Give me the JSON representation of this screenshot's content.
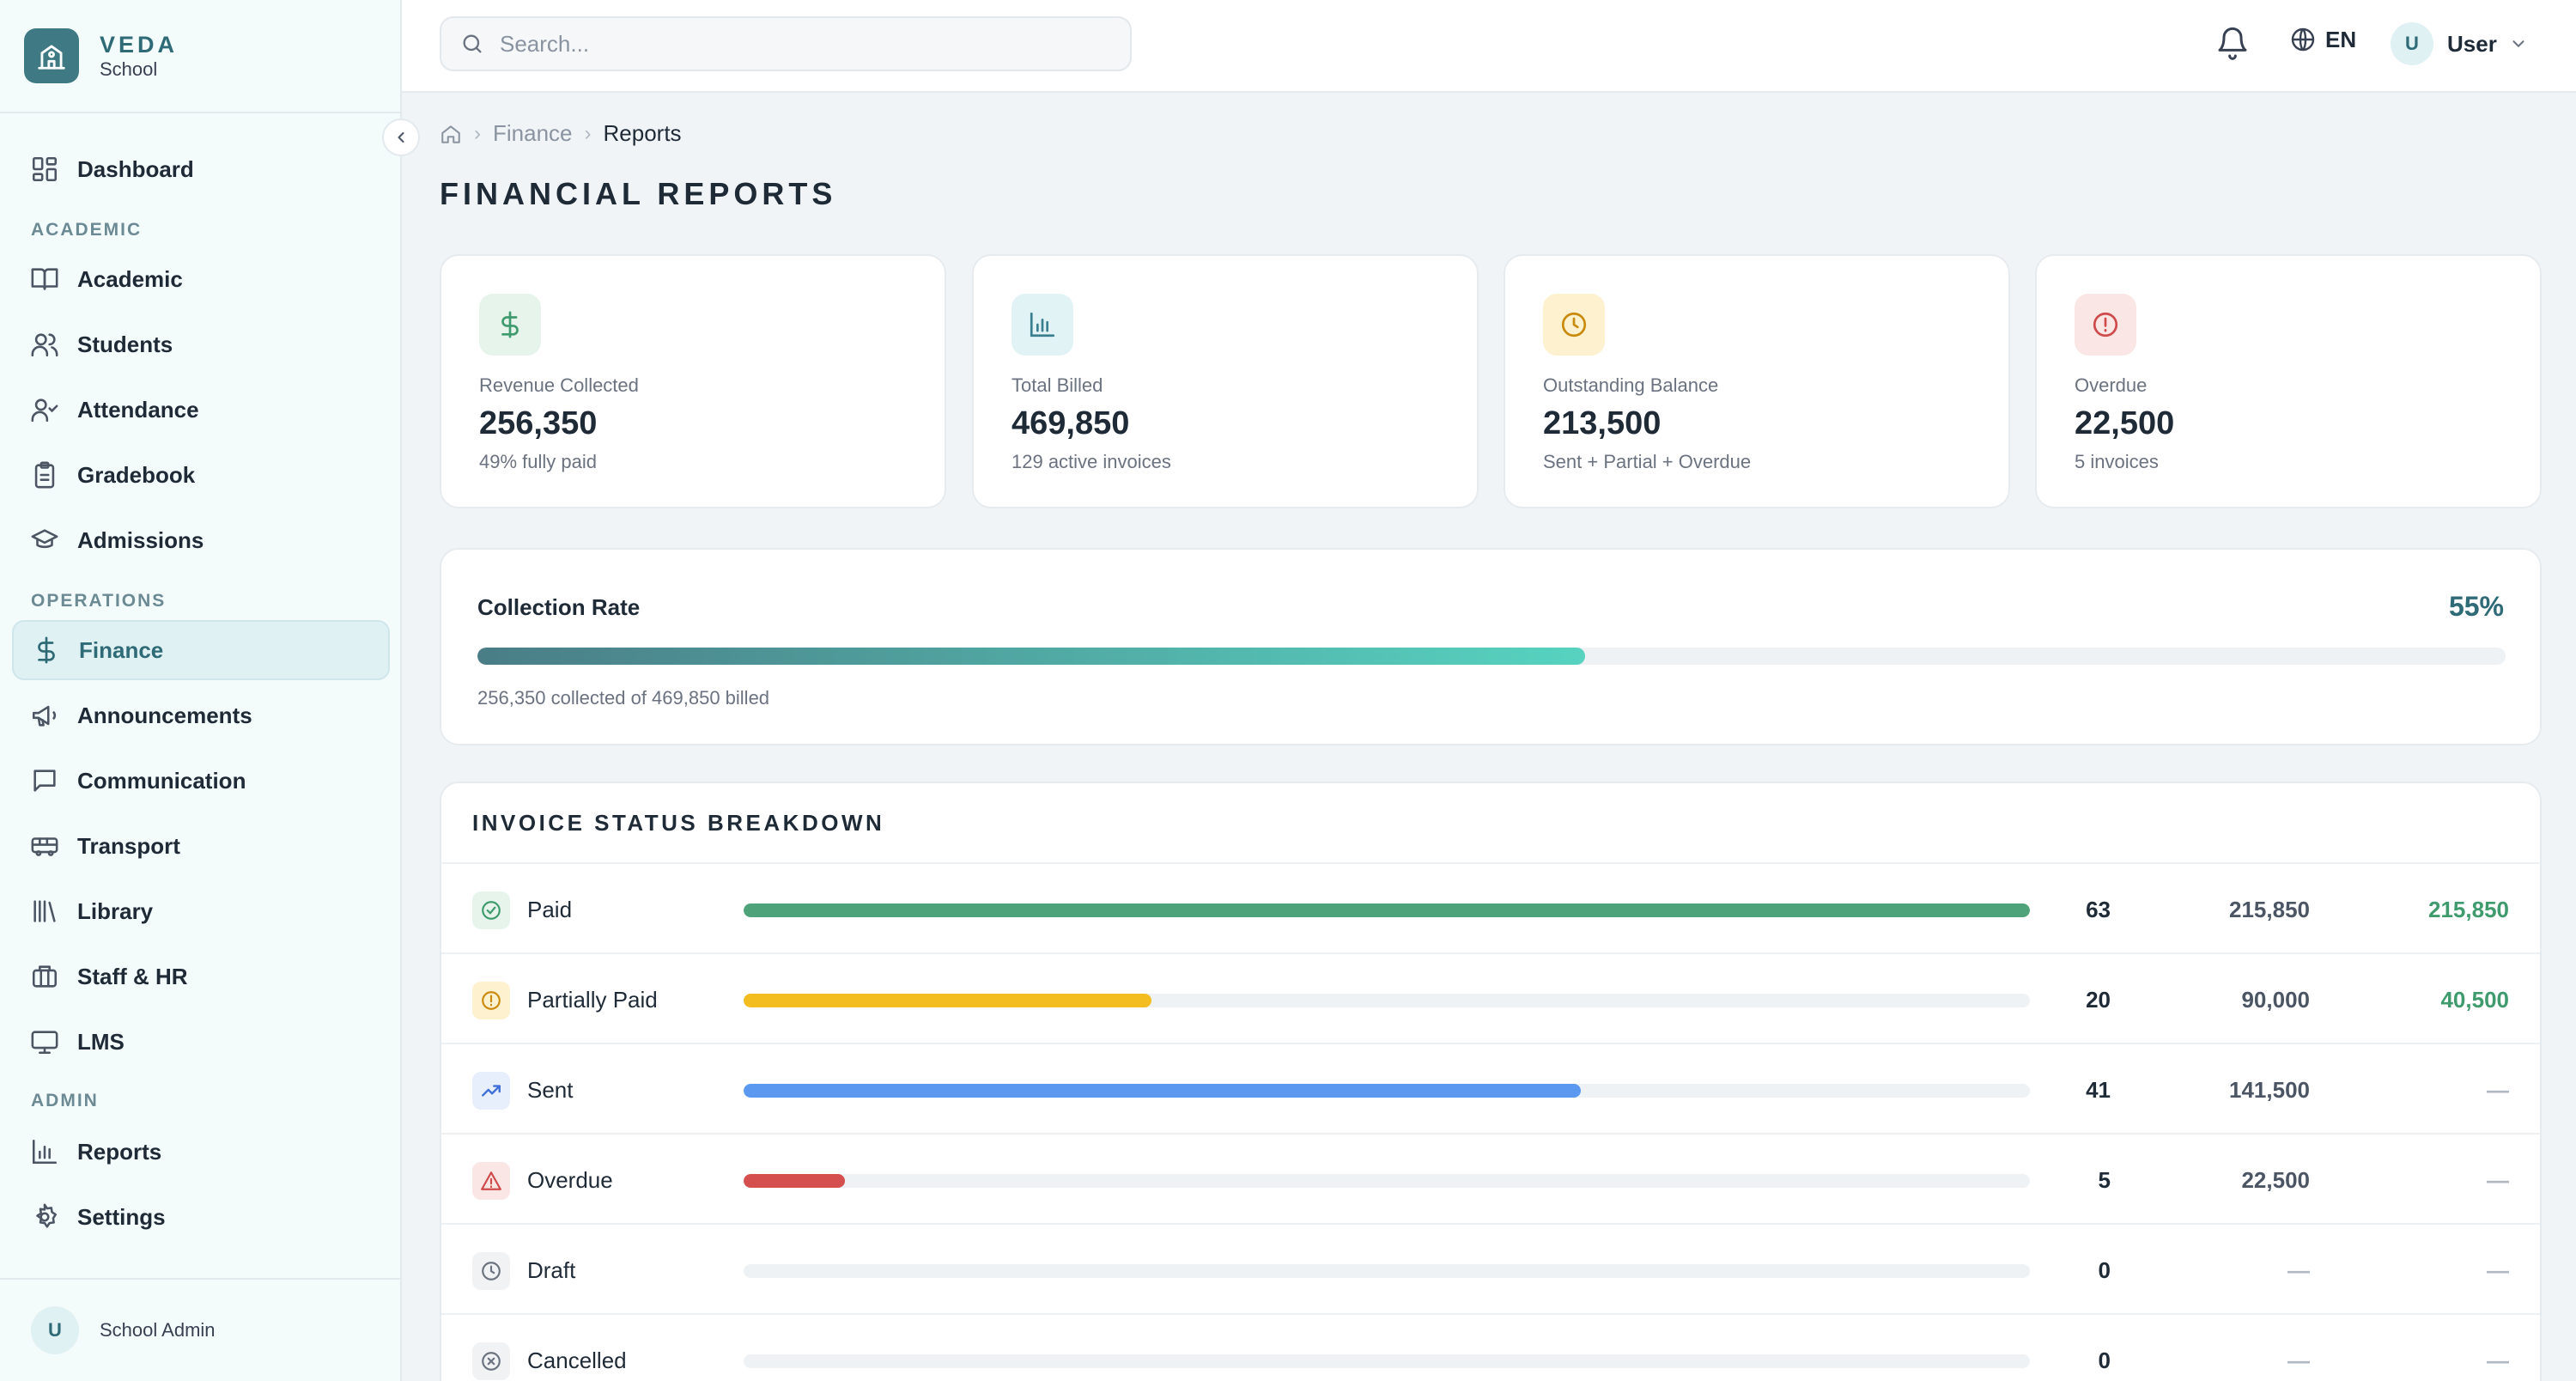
{
  "brand": {
    "name": "VEDA",
    "sub": "School",
    "icon": "school-building-icon"
  },
  "sidebar": {
    "items": [
      {
        "label": "Dashboard",
        "icon": "dashboard-grid-icon"
      },
      {
        "label": "Academic",
        "icon": "book-icon"
      },
      {
        "label": "Students",
        "icon": "users-icon"
      },
      {
        "label": "Attendance",
        "icon": "user-check-icon"
      },
      {
        "label": "Gradebook",
        "icon": "clipboard-icon"
      },
      {
        "label": "Admissions",
        "icon": "graduation-cap-icon"
      },
      {
        "label": "Finance",
        "icon": "dollar-icon",
        "active": true
      },
      {
        "label": "Announcements",
        "icon": "megaphone-icon"
      },
      {
        "label": "Communication",
        "icon": "message-square-icon"
      },
      {
        "label": "Transport",
        "icon": "bus-icon"
      },
      {
        "label": "Library",
        "icon": "library-icon"
      },
      {
        "label": "Staff & HR",
        "icon": "briefcase-icon"
      },
      {
        "label": "LMS",
        "icon": "monitor-icon"
      },
      {
        "label": "Reports",
        "icon": "bar-chart-icon"
      },
      {
        "label": "Settings",
        "icon": "gear-icon"
      }
    ],
    "sections": {
      "academic": "ACADEMIC",
      "operations": "OPERATIONS",
      "admin": "ADMIN"
    },
    "footer": {
      "avatar": "U",
      "name": "School Admin"
    }
  },
  "topbar": {
    "search_placeholder": "Search...",
    "language": "EN",
    "user": {
      "avatar": "U",
      "name": "User"
    }
  },
  "breadcrumb": {
    "home_icon": "home-icon",
    "parent": "Finance",
    "current": "Reports"
  },
  "page_title": "FINANCIAL REPORTS",
  "stats": [
    {
      "label": "Revenue Collected",
      "value": "256,350",
      "sub": "49% fully paid",
      "icon": "dollar-icon",
      "color": "#3f9b6e",
      "bg": "#e6f4ec"
    },
    {
      "label": "Total Billed",
      "value": "469,850",
      "sub": "129 active invoices",
      "icon": "bar-chart-icon",
      "color": "#3a7f8f",
      "bg": "#e2f3f6"
    },
    {
      "label": "Outstanding Balance",
      "value": "213,500",
      "sub": "Sent + Partial + Overdue",
      "icon": "clock-icon",
      "color": "#c98a0c",
      "bg": "#fdf1cf"
    },
    {
      "label": "Overdue",
      "value": "22,500",
      "sub": "5 invoices",
      "icon": "alert-circle-icon",
      "color": "#cf4a4a",
      "bg": "#fbe6e6"
    }
  ],
  "collection": {
    "title": "Collection Rate",
    "percent_label": "55%",
    "fraction": 0.546,
    "sub": "256,350 collected of 469,850 billed"
  },
  "status": {
    "title": "INVOICE STATUS BREAKDOWN",
    "rows": [
      {
        "label": "Paid",
        "count": "63",
        "amount": "215,850",
        "collected": "215,850",
        "fraction": 1.0,
        "color": "#4fa37a",
        "icon": "check-circle-icon",
        "icon_color": "#3f9b6e",
        "icon_bg": "#e6f4ec",
        "collected_color": "#3f9b6e"
      },
      {
        "label": "Partially Paid",
        "count": "20",
        "amount": "90,000",
        "collected": "40,500",
        "fraction": 0.317,
        "color": "#f3bd1f",
        "icon": "alert-circle-icon",
        "icon_color": "#c98a0c",
        "icon_bg": "#fdf1cf",
        "collected_color": "#3f9b6e"
      },
      {
        "label": "Sent",
        "count": "41",
        "amount": "141,500",
        "collected": "—",
        "fraction": 0.651,
        "color": "#5b99f0",
        "icon": "trending-up-icon",
        "icon_color": "#3f6fd8",
        "icon_bg": "#e7effc",
        "collected_color": "#b0b8c1"
      },
      {
        "label": "Overdue",
        "count": "5",
        "amount": "22,500",
        "collected": "—",
        "fraction": 0.079,
        "color": "#d64f4f",
        "icon": "alert-triangle-icon",
        "icon_color": "#cf4a4a",
        "icon_bg": "#fbe6e6",
        "collected_color": "#b0b8c1"
      },
      {
        "label": "Draft",
        "count": "0",
        "amount": "—",
        "collected": "—",
        "fraction": 0,
        "color": "#9aa3ad",
        "icon": "clock-icon",
        "icon_color": "#6b7280",
        "icon_bg": "#f0f2f4",
        "collected_color": "#b0b8c1"
      },
      {
        "label": "Cancelled",
        "count": "0",
        "amount": "—",
        "collected": "—",
        "fraction": 0,
        "color": "#9aa3ad",
        "icon": "x-circle-icon",
        "icon_color": "#6b7280",
        "icon_bg": "#f0f2f4",
        "collected_color": "#b0b8c1"
      }
    ]
  }
}
